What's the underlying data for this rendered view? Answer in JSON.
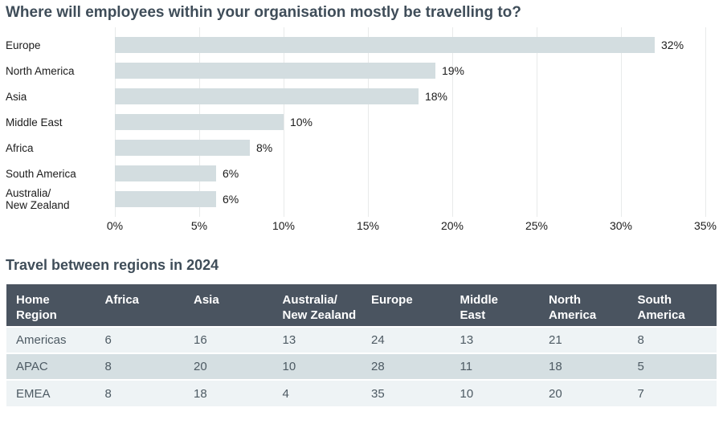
{
  "page": {
    "chart_title": "Where will employees within your organisation mostly be travelling to?",
    "table_title": "Travel between regions in 2024"
  },
  "chart_data": [
    {
      "type": "bar",
      "orientation": "horizontal",
      "title": "Where will employees within your organisation mostly be travelling to?",
      "categories": [
        "Europe",
        "North America",
        "Asia",
        "Middle East",
        "Africa",
        "South America",
        "Australia/New Zealand"
      ],
      "values": [
        32,
        19,
        18,
        10,
        8,
        6,
        6
      ],
      "unit": "%",
      "data_labels": [
        "32%",
        "19%",
        "18%",
        "10%",
        "8%",
        "6%",
        "6%"
      ],
      "xlabel": "",
      "ylabel": "",
      "xlim": [
        0,
        35
      ],
      "xticks": [
        "0%",
        "5%",
        "10%",
        "15%",
        "20%",
        "25%",
        "30%",
        "35%"
      ],
      "grid": true,
      "legend": false
    },
    {
      "type": "table",
      "title": "Travel between regions in 2024",
      "columns": [
        "Home Region",
        "Africa",
        "Asia",
        "Australia/New Zealand",
        "Europe",
        "Middle East",
        "North America",
        "South America"
      ],
      "rows": [
        [
          "Americas",
          6,
          16,
          13,
          24,
          13,
          21,
          8
        ],
        [
          "APAC",
          8,
          20,
          10,
          28,
          11,
          18,
          5
        ],
        [
          "EMEA",
          8,
          18,
          4,
          35,
          10,
          20,
          7
        ]
      ]
    }
  ],
  "display": {
    "bar_labels": [
      "Europe",
      "North America",
      "Asia",
      "Middle East",
      "Africa",
      "South America",
      "Australia/\nNew Zealand"
    ],
    "table_headers": [
      "Home\nRegion",
      "Africa",
      "Asia",
      "Australia/\nNew Zealand",
      "Europe",
      "Middle\nEast",
      "North\nAmerica",
      "South\nAmerica"
    ]
  },
  "colors": {
    "title_text": "#3f4d59",
    "bar_fill": "#d3dde0",
    "gridline": "#e8eaea",
    "axis_text": "#1c1c1c",
    "table_header_bg": "#4a5460",
    "table_header_text": "#ffffff",
    "row_light": "#eef3f5",
    "row_dark": "#d5dfe2",
    "table_text": "#4d5a63"
  }
}
